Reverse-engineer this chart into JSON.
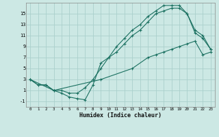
{
  "xlabel": "Humidex (Indice chaleur)",
  "bg_color": "#cce8e4",
  "grid_color": "#aad0cc",
  "line_color": "#1a7060",
  "xlim": [
    -0.5,
    23.5
  ],
  "ylim": [
    -2,
    17
  ],
  "xticks": [
    0,
    1,
    2,
    3,
    4,
    5,
    6,
    7,
    8,
    9,
    10,
    11,
    12,
    13,
    14,
    15,
    16,
    17,
    18,
    19,
    20,
    21,
    22,
    23
  ],
  "yticks": [
    -1,
    1,
    3,
    5,
    7,
    9,
    11,
    13,
    15
  ],
  "line1_x": [
    0,
    1,
    2,
    3,
    4,
    5,
    6,
    7,
    8,
    9,
    10,
    11,
    12,
    13,
    14,
    15,
    16,
    17,
    18,
    19,
    20,
    21,
    22,
    23
  ],
  "line1_y": [
    3,
    2,
    2,
    1,
    1,
    0.5,
    0.5,
    1.5,
    3,
    5,
    7,
    8,
    9.5,
    11,
    12,
    13.5,
    15,
    15.5,
    16,
    16,
    15,
    11.5,
    10.5,
    8.5
  ],
  "line2_x": [
    0,
    1,
    2,
    3,
    4,
    5,
    6,
    7,
    8,
    9,
    10,
    11,
    12,
    13,
    14,
    15,
    16,
    17,
    18,
    19,
    20,
    21,
    22,
    23
  ],
  "line2_y": [
    3,
    2,
    2,
    1,
    0.5,
    -0.2,
    -0.5,
    -0.7,
    2,
    6,
    7,
    9,
    10.5,
    12,
    13,
    14.5,
    15.5,
    16.5,
    16.5,
    16.5,
    15,
    12,
    11,
    8.5
  ],
  "line3_x": [
    0,
    3,
    9,
    13,
    15,
    16,
    17,
    18,
    19,
    20,
    21,
    22,
    23
  ],
  "line3_y": [
    3,
    1,
    3,
    5,
    7,
    7.5,
    8,
    8.5,
    9,
    9.5,
    10,
    7.5,
    8
  ]
}
